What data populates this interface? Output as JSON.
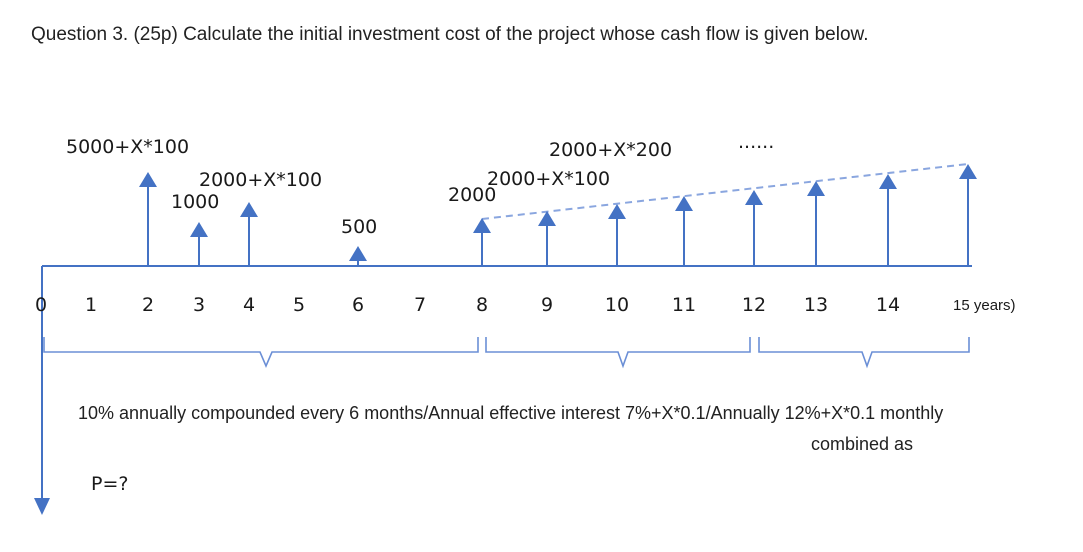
{
  "question": "Question 3. (25p) Calculate the initial investment cost of the project whose cash flow is given below.",
  "colors": {
    "arrow": "#4472C4",
    "axis": "#4472C4",
    "brace": "#6b8fd6",
    "dashed": "#8aa6df"
  },
  "timeline": {
    "ticks": [
      "0",
      "1",
      "2",
      "3",
      "4",
      "5",
      "6",
      "7",
      "8",
      "9",
      "10",
      "11",
      "12",
      "13",
      "14",
      "15 years)"
    ]
  },
  "cash_flows": [
    {
      "period": "2",
      "label": "5000+X*100"
    },
    {
      "period": "3",
      "label": "1000"
    },
    {
      "period": "4",
      "label": "2000+X*100"
    },
    {
      "period": "6",
      "label": "500"
    },
    {
      "period": "8",
      "label": "2000"
    },
    {
      "period": "9",
      "label": "2000+X*100"
    },
    {
      "period": "10",
      "label": "2000+X*200"
    },
    {
      "period": "11",
      "label": ""
    },
    {
      "period": "12",
      "label": "......"
    },
    {
      "period": "13",
      "label": ""
    },
    {
      "period": "14",
      "label": ""
    },
    {
      "period": "15",
      "label": ""
    }
  ],
  "present_value_label": "P=?",
  "interest_note": {
    "line1": "10% annually compounded every 6 months/Annual effective interest 7%+X*0.1/Annually 12%+X*0.1 monthly",
    "line2": "combined as"
  }
}
